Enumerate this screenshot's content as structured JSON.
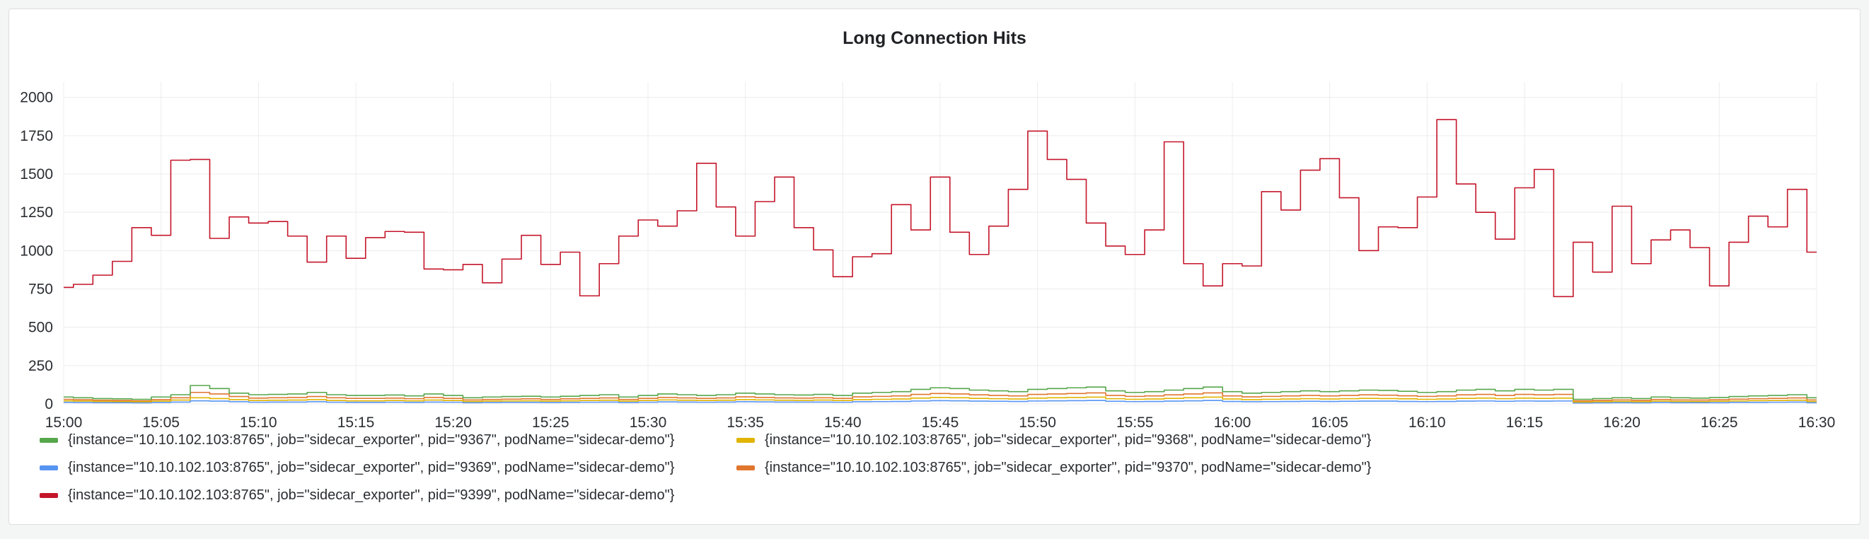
{
  "panel": {
    "title": "Long Connection Hits"
  },
  "chart_data": {
    "type": "line",
    "title": "Long Connection Hits",
    "xlabel": "",
    "ylabel": "",
    "ylim": [
      0,
      2100
    ],
    "yticks": [
      0,
      250,
      500,
      750,
      1000,
      1250,
      1500,
      1750,
      2000
    ],
    "xlim": [
      "15:00",
      "16:30"
    ],
    "xticks": [
      "15:00",
      "15:05",
      "15:10",
      "15:15",
      "15:20",
      "15:25",
      "15:30",
      "15:35",
      "15:40",
      "15:45",
      "15:50",
      "15:55",
      "16:00",
      "16:05",
      "16:10",
      "16:15",
      "16:20",
      "16:25",
      "16:30"
    ],
    "grid": true,
    "legend_position": "bottom",
    "x": [
      "15:00",
      "15:01",
      "15:02",
      "15:03",
      "15:04",
      "15:05",
      "15:06",
      "15:07",
      "15:08",
      "15:09",
      "15:10",
      "15:11",
      "15:12",
      "15:13",
      "15:14",
      "15:15",
      "15:16",
      "15:17",
      "15:18",
      "15:19",
      "15:20",
      "15:21",
      "15:22",
      "15:23",
      "15:24",
      "15:25",
      "15:26",
      "15:27",
      "15:28",
      "15:29",
      "15:30",
      "15:31",
      "15:32",
      "15:33",
      "15:34",
      "15:35",
      "15:36",
      "15:37",
      "15:38",
      "15:39",
      "15:40",
      "15:41",
      "15:42",
      "15:43",
      "15:44",
      "15:45",
      "15:46",
      "15:47",
      "15:48",
      "15:49",
      "15:50",
      "15:51",
      "15:52",
      "15:53",
      "15:54",
      "15:55",
      "15:56",
      "15:57",
      "15:58",
      "15:59",
      "16:00",
      "16:01",
      "16:02",
      "16:03",
      "16:04",
      "16:05",
      "16:06",
      "16:07",
      "16:08",
      "16:09",
      "16:10",
      "16:11",
      "16:12",
      "16:13",
      "16:14",
      "16:15",
      "16:16",
      "16:17",
      "16:18",
      "16:19",
      "16:20",
      "16:21",
      "16:22",
      "16:23",
      "16:24",
      "16:25",
      "16:26",
      "16:27",
      "16:28",
      "16:29",
      "16:30"
    ],
    "series": [
      {
        "name": "{instance=\"10.10.102.103:8765\", job=\"sidecar_exporter\", pid=\"9367\", podName=\"sidecar-demo\"}",
        "color": "#56a64b",
        "values": [
          45,
          40,
          35,
          33,
          30,
          45,
          60,
          120,
          100,
          70,
          60,
          62,
          65,
          75,
          60,
          55,
          55,
          58,
          52,
          65,
          55,
          40,
          45,
          48,
          50,
          45,
          50,
          55,
          60,
          45,
          55,
          65,
          60,
          55,
          60,
          70,
          65,
          60,
          58,
          62,
          55,
          70,
          75,
          80,
          95,
          105,
          100,
          90,
          85,
          80,
          95,
          100,
          105,
          110,
          85,
          75,
          80,
          90,
          100,
          110,
          80,
          70,
          75,
          80,
          85,
          80,
          85,
          90,
          88,
          82,
          75,
          80,
          90,
          95,
          85,
          95,
          90,
          95,
          30,
          35,
          40,
          35,
          45,
          40,
          38,
          42,
          48,
          52,
          55,
          60,
          40
        ]
      },
      {
        "name": "{instance=\"10.10.102.103:8765\", job=\"sidecar_exporter\", pid=\"9368\", podName=\"sidecar-demo\"}",
        "color": "#e0b400",
        "values": [
          20,
          18,
          16,
          15,
          14,
          18,
          25,
          40,
          35,
          28,
          22,
          24,
          25,
          28,
          22,
          20,
          20,
          22,
          20,
          25,
          22,
          16,
          18,
          19,
          20,
          18,
          20,
          22,
          24,
          18,
          22,
          26,
          24,
          22,
          24,
          28,
          26,
          24,
          23,
          25,
          22,
          28,
          30,
          32,
          38,
          42,
          40,
          36,
          34,
          32,
          38,
          40,
          42,
          44,
          34,
          30,
          32,
          36,
          40,
          44,
          32,
          28,
          30,
          32,
          34,
          32,
          34,
          36,
          35,
          33,
          30,
          32,
          36,
          38,
          34,
          38,
          36,
          38,
          12,
          14,
          16,
          14,
          18,
          16,
          15,
          17,
          19,
          21,
          22,
          24,
          16
        ]
      },
      {
        "name": "{instance=\"10.10.102.103:8765\", job=\"sidecar_exporter\", pid=\"9369\", podName=\"sidecar-demo\"}",
        "color": "#5794f2",
        "values": [
          10,
          9,
          8,
          8,
          7,
          9,
          12,
          20,
          18,
          14,
          11,
          12,
          12,
          14,
          11,
          10,
          10,
          11,
          10,
          12,
          11,
          8,
          9,
          10,
          10,
          9,
          10,
          11,
          12,
          9,
          11,
          13,
          12,
          11,
          12,
          14,
          13,
          12,
          12,
          12,
          11,
          14,
          15,
          16,
          19,
          21,
          20,
          18,
          17,
          16,
          19,
          20,
          21,
          22,
          17,
          15,
          16,
          18,
          20,
          22,
          16,
          14,
          15,
          16,
          17,
          16,
          17,
          18,
          18,
          16,
          15,
          16,
          18,
          19,
          17,
          19,
          18,
          19,
          6,
          7,
          8,
          7,
          9,
          8,
          8,
          8,
          10,
          10,
          11,
          12,
          8
        ]
      },
      {
        "name": "{instance=\"10.10.102.103:8765\", job=\"sidecar_exporter\", pid=\"9370\", podName=\"sidecar-demo\"}",
        "color": "#e0752d",
        "values": [
          30,
          27,
          24,
          22,
          20,
          28,
          40,
          75,
          65,
          48,
          38,
          40,
          42,
          48,
          40,
          36,
          36,
          38,
          34,
          42,
          36,
          26,
          29,
          31,
          33,
          29,
          33,
          36,
          39,
          29,
          36,
          42,
          39,
          36,
          39,
          46,
          42,
          39,
          38,
          40,
          36,
          46,
          49,
          52,
          62,
          68,
          65,
          59,
          55,
          52,
          62,
          65,
          68,
          72,
          55,
          49,
          52,
          59,
          65,
          72,
          52,
          46,
          49,
          52,
          55,
          52,
          55,
          59,
          57,
          53,
          49,
          52,
          59,
          62,
          55,
          62,
          59,
          62,
          20,
          23,
          26,
          23,
          29,
          26,
          25,
          27,
          31,
          34,
          36,
          39,
          26
        ]
      },
      {
        "name": "{instance=\"10.10.102.103:8765\", job=\"sidecar_exporter\", pid=\"9399\", podName=\"sidecar-demo\"}",
        "color": "#c4162a",
        "values": [
          760,
          780,
          840,
          930,
          1150,
          1100,
          1590,
          1595,
          1080,
          1220,
          1180,
          1190,
          1095,
          925,
          1095,
          950,
          1085,
          1125,
          1120,
          880,
          875,
          910,
          790,
          945,
          1100,
          910,
          990,
          705,
          915,
          1095,
          1200,
          1160,
          1260,
          1570,
          1285,
          1095,
          1320,
          1480,
          1150,
          1005,
          830,
          960,
          980,
          1300,
          1135,
          1480,
          1120,
          975,
          1160,
          1400,
          1780,
          1595,
          1465,
          1180,
          1030,
          975,
          1135,
          1710,
          915,
          770,
          915,
          900,
          1385,
          1265,
          1525,
          1600,
          1345,
          1000,
          1155,
          1150,
          1350,
          1855,
          1435,
          1250,
          1075,
          1410,
          1530,
          700,
          1055,
          860,
          1290,
          915,
          1070,
          1135,
          1020,
          770,
          1055,
          1225,
          1155,
          1400,
          990
        ]
      }
    ]
  }
}
